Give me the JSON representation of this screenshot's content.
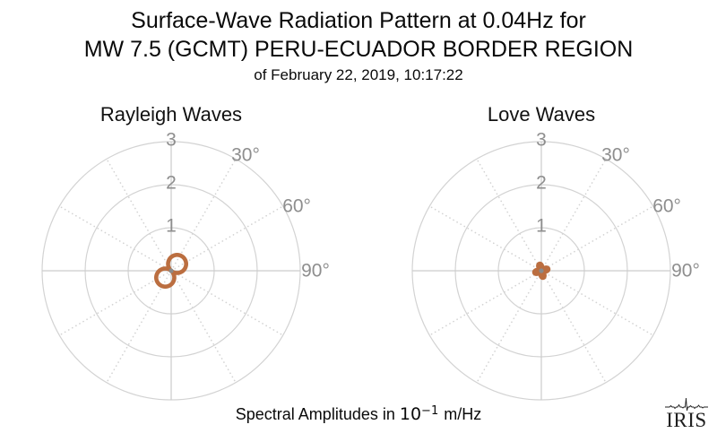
{
  "header": {
    "title_line1": "Surface-Wave Radiation Pattern at 0.04Hz for",
    "title_line2": "MW 7.5 (GCMT) PERU-ECUADOR BORDER REGION",
    "subtitle": "of February 22, 2019, 10:17:22"
  },
  "caption": {
    "prefix": "Spectral Amplitudes in ",
    "power_base": "10",
    "power_exponent": "−1",
    "suffix": " m/Hz"
  },
  "logo": {
    "text": "IRIS"
  },
  "colors": {
    "background": "#ffffff",
    "title_text": "#0a0a0a",
    "grid": "#d3d3d3",
    "grid_solid": "#cccccc",
    "tick_label": "#8e8e8e",
    "pattern": "#bb6e40",
    "center_dot": "#8a8a8a",
    "logo": "#1f1f1f"
  },
  "chart_data": [
    {
      "type": "polar-line",
      "title": "Rayleigh Waves",
      "r_ticks": [
        1,
        2,
        3
      ],
      "r_tick_labels": [
        "1",
        "2",
        "3"
      ],
      "r_axis_max": 3,
      "theta_ticks_deg": [
        30,
        60,
        90
      ],
      "theta_tick_labels": [
        "30°",
        "60°",
        "90°"
      ],
      "solid_spokes_deg": [
        0,
        90,
        180,
        270
      ],
      "dotted_spokes_deg": [
        30,
        60,
        120,
        150,
        210,
        240,
        300,
        330
      ],
      "pattern": {
        "name": "rayleigh-radiation-pattern",
        "lobes": 2,
        "max_amplitude": 0.42,
        "lobe_azimuth_deg": 41
      }
    },
    {
      "type": "polar-line",
      "title": "Love Waves",
      "r_ticks": [
        1,
        2,
        3
      ],
      "r_tick_labels": [
        "1",
        "2",
        "3"
      ],
      "r_axis_max": 3,
      "theta_ticks_deg": [
        30,
        60,
        90
      ],
      "theta_tick_labels": [
        "30°",
        "60°",
        "90°"
      ],
      "solid_spokes_deg": [
        0,
        90,
        180,
        270
      ],
      "dotted_spokes_deg": [
        30,
        60,
        120,
        150,
        210,
        240,
        300,
        330
      ],
      "pattern": {
        "name": "love-radiation-pattern",
        "lobes": 4,
        "max_amplitude": 0.17,
        "lobe_azimuth_deg": 75
      }
    }
  ]
}
